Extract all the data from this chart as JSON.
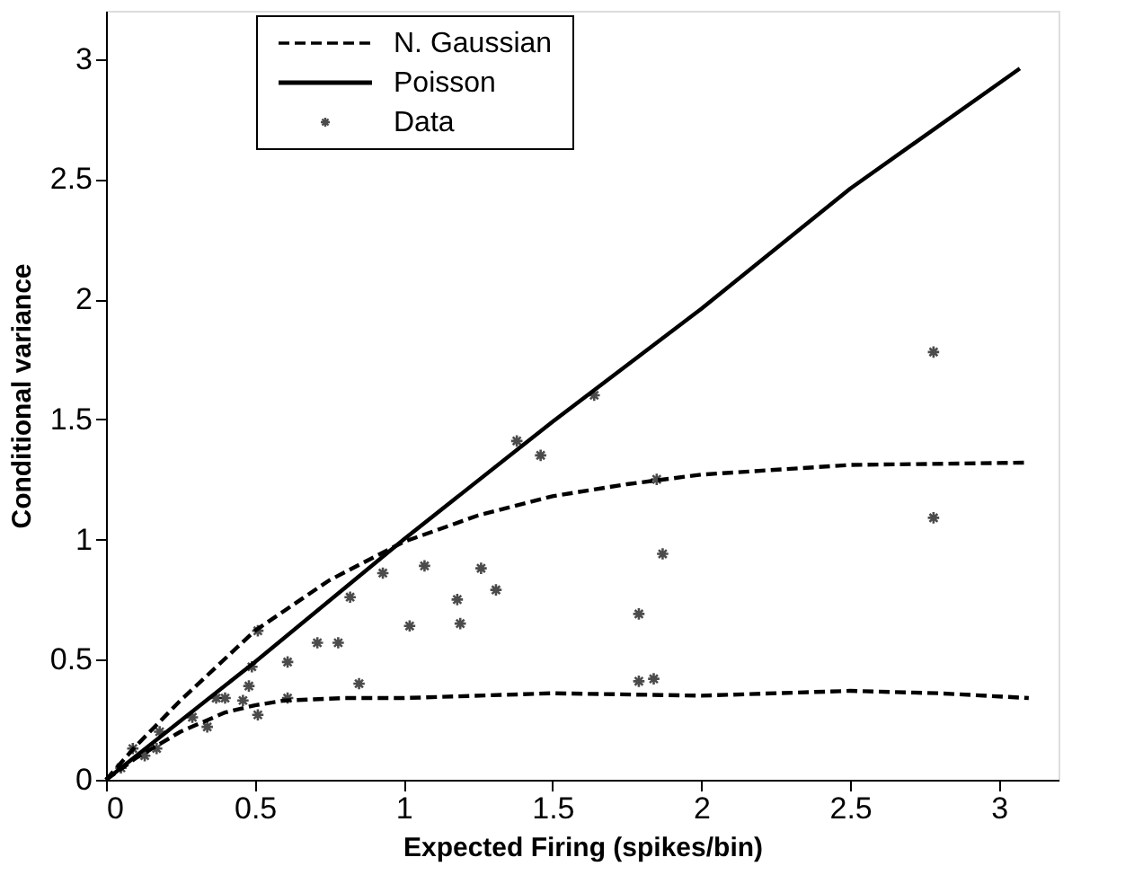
{
  "chart_data": {
    "type": "line",
    "xlabel": "Expected Firing (spikes/bin)",
    "ylabel": "Conditional variance",
    "xlim": [
      0,
      3.2
    ],
    "ylim": [
      0,
      3.2
    ],
    "xticks": [
      0,
      0.5,
      1,
      1.5,
      2,
      2.5,
      3
    ],
    "yticks": [
      0,
      0.5,
      1,
      1.5,
      2,
      2.5,
      3
    ],
    "grid": false,
    "legend": "top left",
    "series": [
      {
        "name": "N. Gaussian",
        "color": "#000000",
        "line_style": "dashed",
        "x": [
          0,
          0.1,
          0.25,
          0.5,
          0.75,
          1,
          1.25,
          1.5,
          1.75,
          2,
          2.5,
          3.1
        ],
        "values": [
          0,
          0.14,
          0.33,
          0.62,
          0.83,
          0.99,
          1.1,
          1.18,
          1.23,
          1.27,
          1.31,
          1.32
        ]
      },
      {
        "color": "#000000",
        "line_style": "dashed",
        "x": [
          0,
          0.1,
          0.25,
          0.4,
          0.5,
          0.6,
          0.8,
          1,
          1.5,
          2,
          2.5,
          2.8,
          3.1
        ],
        "values": [
          0,
          0.09,
          0.2,
          0.28,
          0.31,
          0.33,
          0.34,
          0.34,
          0.36,
          0.35,
          0.37,
          0.36,
          0.34
        ]
      },
      {
        "name": "Poisson",
        "color": "#000000",
        "line_style": "solid",
        "x": [
          0,
          0.5,
          1,
          1.5,
          2,
          2.5,
          3.07
        ],
        "values": [
          0,
          0.49,
          1,
          1.49,
          1.96,
          2.46,
          2.96
        ]
      },
      {
        "name": "Data",
        "type": "scatter",
        "color": "#000000",
        "marker": "cross",
        "x": [
          1.38,
          1.46,
          0.93,
          1.07,
          1.26,
          1.02,
          1.18,
          1.19,
          1.31,
          0.82,
          0.71,
          0.78,
          0.61,
          0.85,
          0.61,
          0.51,
          0.48,
          0.49,
          0.4,
          0.46,
          0.51,
          0.34,
          0.29,
          0.18,
          0.17,
          0.13,
          0.09,
          0.05,
          0.37,
          1.85,
          1.87,
          1.79,
          1.79,
          1.84,
          2.78,
          2.78,
          1.64
        ],
        "values": [
          1.41,
          1.35,
          0.86,
          0.89,
          0.88,
          0.64,
          0.75,
          0.65,
          0.79,
          0.76,
          0.57,
          0.57,
          0.49,
          0.4,
          0.34,
          0.62,
          0.39,
          0.47,
          0.34,
          0.33,
          0.27,
          0.22,
          0.26,
          0.2,
          0.13,
          0.1,
          0.13,
          0.05,
          0.34,
          1.25,
          0.94,
          0.69,
          0.41,
          0.42,
          1.09,
          1.78,
          1.6
        ]
      }
    ]
  }
}
